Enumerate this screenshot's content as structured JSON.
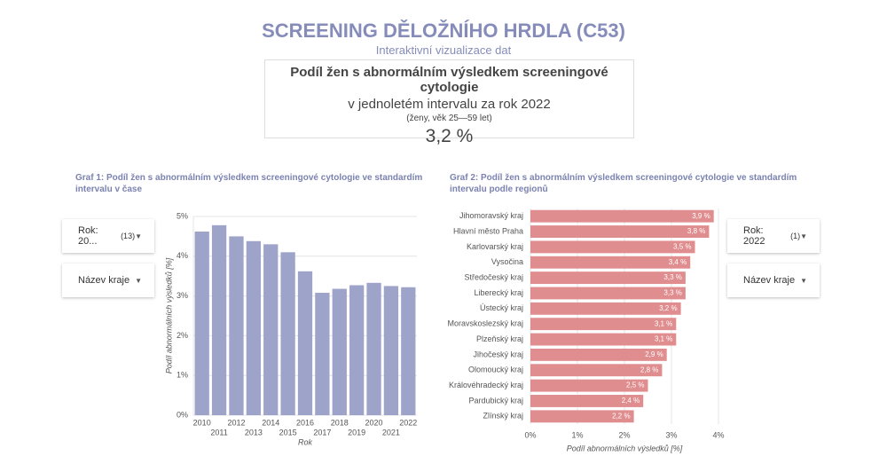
{
  "header": {
    "title": "SCREENING DĚLOŽNÍHO HRDLA (C53)",
    "subtitle": "Interaktivní vizualizace dat"
  },
  "kpi": {
    "title": "Podíl žen s abnormálním výsledkem screeningové cytologie",
    "subtitle": "v jednoletém intervalu za rok 2022",
    "note": "(ženy, věk 25—59 let)",
    "value": "3,2 %"
  },
  "filters": {
    "left": [
      {
        "label": "Rok: 20...",
        "count": "(13)"
      },
      {
        "label": "Název kraje"
      }
    ],
    "right": [
      {
        "label": "Rok: 2022",
        "count": "(1)"
      },
      {
        "label": "Název kraje"
      }
    ]
  },
  "chart_data": [
    {
      "type": "bar",
      "orientation": "vertical",
      "title": "Graf 1: Podíl žen s abnormálním výsledkem screeningové cytologie ve standardím intervalu v čase",
      "x_label": "Rok",
      "y_label": "Podíl abnormálních výsledků [%]",
      "categories": [
        2010,
        2011,
        2012,
        2013,
        2014,
        2015,
        2016,
        2017,
        2018,
        2019,
        2020,
        2021,
        2022
      ],
      "values": [
        4.62,
        4.78,
        4.5,
        4.38,
        4.3,
        4.1,
        3.62,
        3.08,
        3.18,
        3.27,
        3.33,
        3.25,
        3.22
      ],
      "color": "#9ea3c9",
      "ylim": [
        0,
        5
      ],
      "yticks": [
        {
          "value": 0,
          "label": "0%"
        },
        {
          "value": 1,
          "label": "1%"
        },
        {
          "value": 2,
          "label": "2%"
        },
        {
          "value": 3,
          "label": "3%"
        },
        {
          "value": 4,
          "label": "4%"
        },
        {
          "value": 5,
          "label": "5%"
        }
      ],
      "grid": true
    },
    {
      "type": "bar",
      "orientation": "horizontal",
      "title": "Graf 2: Podíl žen s abnormálním výsledkem screeningové cytologie ve standardím intervalu podle regionů",
      "x_label": "Podíl abnormálních výsledků [%]",
      "categories": [
        "Jihomoravský kraj",
        "Hlavní město Praha",
        "Karlovarský kraj",
        "Vysočina",
        "Středočeský kraj",
        "Liberecký kraj",
        "Ústecký kraj",
        "Moravskoslezský kraj",
        "Plzeňský kraj",
        "Jihočeský kraj",
        "Olomoucký kraj",
        "Královéhradecký kraj",
        "Pardubický kraj",
        "Zlínský kraj"
      ],
      "values": [
        3.9,
        3.8,
        3.5,
        3.4,
        3.3,
        3.3,
        3.2,
        3.1,
        3.1,
        2.9,
        2.8,
        2.5,
        2.4,
        2.2
      ],
      "value_labels": [
        "3,9 %",
        "3,8 %",
        "3,5 %",
        "3,4 %",
        "3,3 %",
        "3,3 %",
        "3,2 %",
        "3,1 %",
        "3,1 %",
        "2,9 %",
        "2,8 %",
        "2,5 %",
        "2,4 %",
        "2,2 %"
      ],
      "color": "#e08d8f",
      "xlim": [
        0,
        4
      ],
      "xticks": [
        {
          "value": 0,
          "label": "0%"
        },
        {
          "value": 1,
          "label": "1%"
        },
        {
          "value": 2,
          "label": "2%"
        },
        {
          "value": 3,
          "label": "3%"
        },
        {
          "value": 4,
          "label": "4%"
        }
      ],
      "grid": true
    }
  ]
}
